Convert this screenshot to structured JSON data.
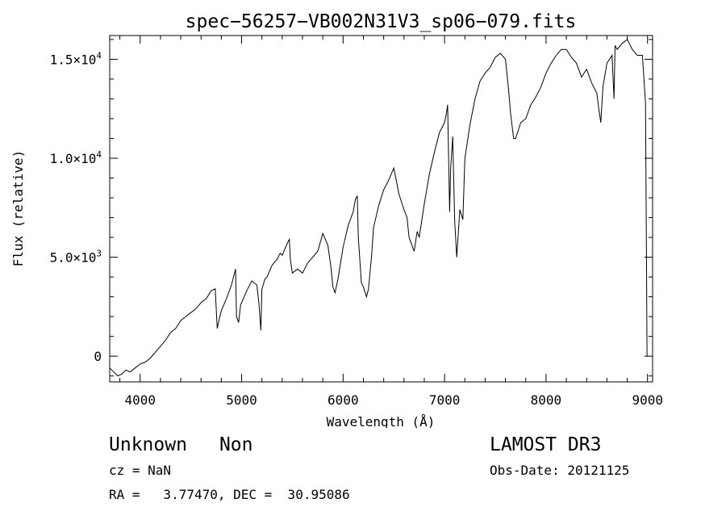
{
  "chart_data": {
    "type": "line",
    "title": "spec−56257−VB002N31V3_sp06−079.fits",
    "xlabel": "Wavelength (Å)",
    "ylabel": "Flux (relative)",
    "xlim": [
      3700,
      9050
    ],
    "ylim": [
      -1300,
      16200
    ],
    "xticks": [
      4000,
      5000,
      6000,
      7000,
      8000,
      9000
    ],
    "xtick_labels": [
      "4000",
      "5000",
      "6000",
      "7000",
      "8000",
      "9000"
    ],
    "yticks": [
      0,
      5000,
      10000,
      15000
    ],
    "ytick_labels": [
      {
        "mant": "0",
        "exp": ""
      },
      {
        "mant": "5.0×10",
        "exp": "3"
      },
      {
        "mant": "1.0×10",
        "exp": "4"
      },
      {
        "mant": "1.5×10",
        "exp": "4"
      }
    ],
    "series": [
      {
        "name": "flux",
        "x": [
          3700,
          3740,
          3780,
          3820,
          3860,
          3900,
          3950,
          4000,
          4050,
          4100,
          4150,
          4200,
          4250,
          4300,
          4350,
          4400,
          4450,
          4500,
          4550,
          4600,
          4650,
          4700,
          4740,
          4760,
          4780,
          4800,
          4850,
          4900,
          4940,
          4950,
          4970,
          4990,
          5000,
          5050,
          5100,
          5150,
          5170,
          5190,
          5200,
          5230,
          5250,
          5300,
          5350,
          5380,
          5400,
          5450,
          5470,
          5480,
          5500,
          5550,
          5600,
          5650,
          5700,
          5750,
          5800,
          5850,
          5880,
          5900,
          5920,
          5950,
          6000,
          6050,
          6100,
          6120,
          6140,
          6150,
          6180,
          6200,
          6230,
          6250,
          6280,
          6300,
          6350,
          6400,
          6450,
          6500,
          6550,
          6600,
          6630,
          6650,
          6700,
          6730,
          6750,
          6800,
          6850,
          6900,
          6950,
          7000,
          7020,
          7030,
          7050,
          7060,
          7080,
          7100,
          7120,
          7150,
          7180,
          7200,
          7250,
          7300,
          7350,
          7400,
          7450,
          7500,
          7550,
          7600,
          7630,
          7650,
          7680,
          7700,
          7750,
          7800,
          7850,
          7900,
          7950,
          8000,
          8050,
          8100,
          8150,
          8200,
          8250,
          8300,
          8350,
          8400,
          8450,
          8500,
          8520,
          8540,
          8560,
          8600,
          8650,
          8670,
          8680,
          8700,
          8750,
          8800,
          8850,
          8900,
          8950,
          8980,
          8990,
          8995,
          9000
        ],
        "values": [
          -600,
          -800,
          -1000,
          -900,
          -700,
          -800,
          -600,
          -400,
          -300,
          -100,
          200,
          500,
          800,
          1200,
          1400,
          1800,
          2000,
          2200,
          2400,
          2700,
          2900,
          3300,
          3400,
          1400,
          1900,
          2300,
          2900,
          3600,
          4400,
          2000,
          1700,
          2600,
          2700,
          3300,
          3800,
          3600,
          2700,
          1300,
          3400,
          3900,
          4000,
          4600,
          4900,
          5200,
          5100,
          5700,
          5900,
          4900,
          4200,
          4400,
          4200,
          4700,
          5000,
          5300,
          6200,
          5600,
          4500,
          3500,
          3200,
          3900,
          5500,
          6600,
          7300,
          7900,
          8100,
          6000,
          3700,
          3500,
          3000,
          3400,
          5000,
          6500,
          7600,
          8400,
          8900,
          9500,
          8200,
          7400,
          7000,
          6000,
          5300,
          6300,
          6000,
          7700,
          9200,
          10300,
          11300,
          11800,
          12300,
          12700,
          7300,
          9500,
          11100,
          6800,
          5000,
          7400,
          6900,
          10000,
          11700,
          13000,
          13900,
          14300,
          14600,
          15100,
          15300,
          15000,
          13500,
          12300,
          11000,
          11000,
          11800,
          12000,
          12700,
          13100,
          13600,
          14300,
          14800,
          15200,
          15500,
          15500,
          15100,
          14800,
          14100,
          14500,
          13800,
          13300,
          12500,
          11800,
          13600,
          14800,
          15200,
          13000,
          15700,
          15500,
          15800,
          16000,
          15500,
          15200,
          15200,
          12800,
          4500,
          0,
          0
        ]
      }
    ]
  },
  "info": {
    "object_class": "Unknown",
    "object_subclass": "Non",
    "cz": "cz = NaN",
    "coords": "RA =   3.77470, DEC =  30.95086",
    "survey": "LAMOST DR3",
    "obs_date": "Obs-Date: 20121125"
  }
}
